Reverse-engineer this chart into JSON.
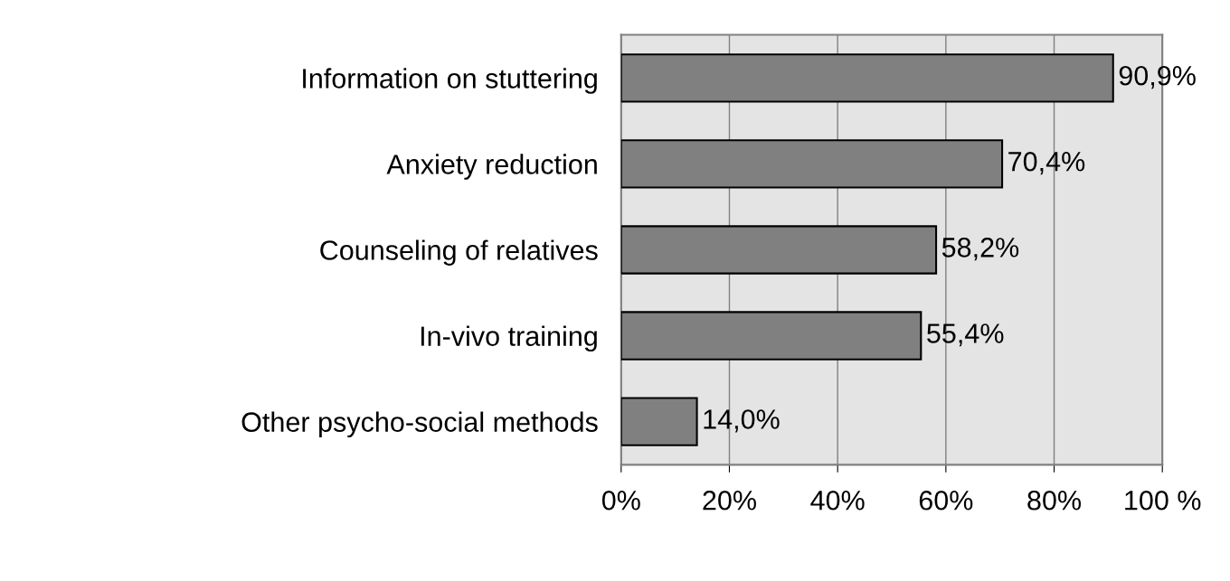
{
  "chart_data": {
    "type": "bar",
    "orientation": "horizontal",
    "categories": [
      "Information on stuttering",
      "Anxiety reduction",
      "Counseling of relatives",
      "In-vivo training",
      "Other psycho-social methods"
    ],
    "values": [
      90.9,
      70.4,
      58.2,
      55.4,
      14.0
    ],
    "value_labels": [
      "90,9%",
      "70,4%",
      "58,2%",
      "55,4%",
      "14,0%"
    ],
    "color": "#808080",
    "xlim": [
      0,
      100
    ],
    "xticks": [
      {
        "value": 0,
        "label": "0%"
      },
      {
        "value": 20,
        "label": "20%"
      },
      {
        "value": 40,
        "label": "40%"
      },
      {
        "value": 60,
        "label": "60%"
      },
      {
        "value": 80,
        "label": "80%"
      },
      {
        "value": 100,
        "label": "100 %"
      }
    ],
    "grid": "x",
    "legend": false
  }
}
